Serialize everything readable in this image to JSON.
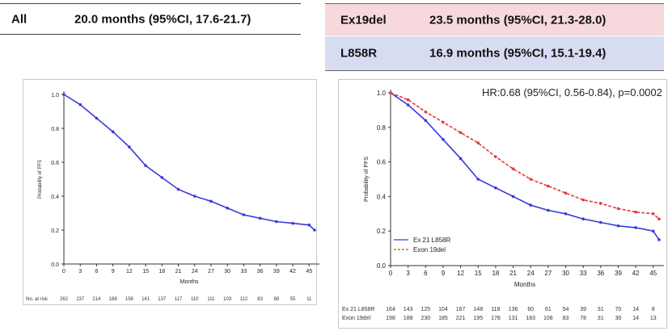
{
  "headers": {
    "all": {
      "label": "All",
      "value": "20.0 months (95%CI, 17.6-21.7)"
    },
    "ex19del": {
      "label": "Ex19del",
      "value": "23.5 months (95%CI, 21.3-28.0)"
    },
    "l858r": {
      "label": "L858R",
      "value": "16.9 months (95%CI, 15.1-19.4)"
    }
  },
  "colors": {
    "blue": "#3a3ad8",
    "red": "#e23a3a",
    "axis": "#333333"
  },
  "chart_data": [
    {
      "type": "line",
      "title": "",
      "xlabel": "Months",
      "ylabel": "Probability of PFS",
      "xlim": [
        0,
        46
      ],
      "ylim": [
        0,
        1.0
      ],
      "xticks": [
        "0",
        "3",
        "6",
        "9",
        "12",
        "15",
        "18",
        "21",
        "24",
        "27",
        "30",
        "33",
        "36",
        "39",
        "42",
        "45"
      ],
      "yticks": [
        "0.0",
        "0.2",
        "0.4",
        "0.6",
        "0.8",
        "1.0"
      ],
      "series": [
        {
          "name": "All",
          "color": "#3a3ad8",
          "style": "solid",
          "x": [
            0,
            3,
            6,
            9,
            12,
            15,
            18,
            21,
            24,
            27,
            30,
            33,
            36,
            39,
            42,
            45,
            46
          ],
          "y": [
            1.0,
            0.94,
            0.86,
            0.78,
            0.69,
            0.58,
            0.51,
            0.44,
            0.4,
            0.37,
            0.33,
            0.29,
            0.27,
            0.25,
            0.24,
            0.23,
            0.2
          ]
        }
      ],
      "risk_table": [
        {
          "label": "No. at risk",
          "values": [
            "262",
            "237",
            "214",
            "188",
            "158",
            "141",
            "137",
            "117",
            "110",
            "111",
            "103",
            "112",
            "83",
            "88",
            "55",
            "11"
          ]
        }
      ]
    },
    {
      "type": "line",
      "title": "",
      "annotation": "HR:0.68 (95%CI, 0.56-0.84), p=0.0002",
      "xlabel": "Months",
      "ylabel": "Probability of PFS",
      "xlim": [
        0,
        46
      ],
      "ylim": [
        0,
        1.0
      ],
      "xticks": [
        "0",
        "3",
        "6",
        "9",
        "12",
        "15",
        "18",
        "21",
        "24",
        "27",
        "30",
        "33",
        "36",
        "39",
        "42",
        "45"
      ],
      "yticks": [
        "0.0",
        "0.2",
        "0.4",
        "0.6",
        "0.8",
        "1.0"
      ],
      "legend": {
        "position": "bottom-left",
        "entries": [
          "Ex 21 L858R",
          "Exon 19del"
        ]
      },
      "series": [
        {
          "name": "Ex 21 L858R",
          "color": "#3a3ad8",
          "style": "solid",
          "x": [
            0,
            3,
            6,
            9,
            12,
            15,
            18,
            21,
            24,
            27,
            30,
            33,
            36,
            39,
            42,
            45,
            46
          ],
          "y": [
            1.0,
            0.93,
            0.84,
            0.73,
            0.62,
            0.5,
            0.45,
            0.4,
            0.35,
            0.32,
            0.3,
            0.27,
            0.25,
            0.23,
            0.22,
            0.2,
            0.15
          ]
        },
        {
          "name": "Exon 19del",
          "color": "#e23a3a",
          "style": "dashed",
          "x": [
            0,
            3,
            6,
            9,
            12,
            15,
            18,
            21,
            24,
            27,
            30,
            33,
            36,
            39,
            42,
            45,
            46
          ],
          "y": [
            1.0,
            0.96,
            0.89,
            0.83,
            0.77,
            0.71,
            0.63,
            0.56,
            0.5,
            0.46,
            0.42,
            0.38,
            0.36,
            0.33,
            0.31,
            0.3,
            0.27
          ]
        }
      ],
      "risk_table": [
        {
          "label": "Ex 21 L858R",
          "values": [
            "164",
            "143",
            "125",
            "104",
            "167",
            "148",
            "118",
            "136",
            "60",
            "61",
            "54",
            "39",
            "31",
            "70",
            "14",
            "8"
          ]
        },
        {
          "label": "Exon 19del",
          "values": [
            "198",
            "188",
            "230",
            "185",
            "221",
            "195",
            "178",
            "131",
            "183",
            "108",
            "83",
            "78",
            "31",
            "30",
            "14",
            "13"
          ]
        }
      ]
    }
  ]
}
